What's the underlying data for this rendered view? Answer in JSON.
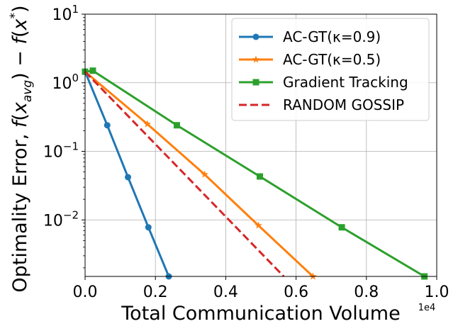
{
  "chart_data": {
    "type": "line",
    "title": "",
    "xlabel": "Total Communication Volume",
    "ylabel": "Optimality Error, f(x_avg) − f(x*)",
    "x_offset_label": "1e4",
    "xscale": "linear",
    "yscale": "log",
    "xlim": [
      0,
      1.0
    ],
    "ylim": [
      0.0015,
      10
    ],
    "x_ticks": [
      {
        "value": 0.0,
        "label": "0.0"
      },
      {
        "value": 0.2,
        "label": "0.2"
      },
      {
        "value": 0.4,
        "label": "0.4"
      },
      {
        "value": 0.6,
        "label": "0.6"
      },
      {
        "value": 0.8,
        "label": "0.8"
      },
      {
        "value": 1.0,
        "label": "1.0"
      }
    ],
    "y_ticks": [
      {
        "value": 0.01,
        "base": "10",
        "exp": "−2"
      },
      {
        "value": 0.1,
        "base": "10",
        "exp": "−1"
      },
      {
        "value": 1,
        "base": "10",
        "exp": "0"
      },
      {
        "value": 10,
        "base": "10",
        "exp": "1"
      }
    ],
    "grid": true,
    "legend_position": "top-right",
    "series": [
      {
        "name": "AC-GT(κ=0.9)",
        "color": "#1f77b4",
        "marker": "circle",
        "dash": "solid",
        "x": [
          0.0,
          0.063,
          0.122,
          0.18,
          0.238
        ],
        "y": [
          1.45,
          0.24,
          0.042,
          0.0078,
          0.0015
        ]
      },
      {
        "name": "AC-GT(κ=0.5)",
        "color": "#ff7f0e",
        "marker": "star",
        "dash": "solid",
        "x": [
          0.0,
          0.177,
          0.34,
          0.493,
          0.648
        ],
        "y": [
          1.45,
          0.25,
          0.046,
          0.0083,
          0.0015
        ]
      },
      {
        "name": "Gradient Tracking",
        "color": "#2ca02c",
        "marker": "square",
        "dash": "solid",
        "x": [
          0.0,
          0.022,
          0.261,
          0.497,
          0.73,
          0.965
        ],
        "y": [
          1.45,
          1.5,
          0.24,
          0.043,
          0.0078,
          0.0015
        ]
      },
      {
        "name": "RANDOM GOSSIP",
        "color": "#d62728",
        "marker": "none",
        "dash": "dashed",
        "x": [
          0.0,
          0.565
        ],
        "y": [
          1.45,
          0.0015
        ]
      }
    ]
  }
}
